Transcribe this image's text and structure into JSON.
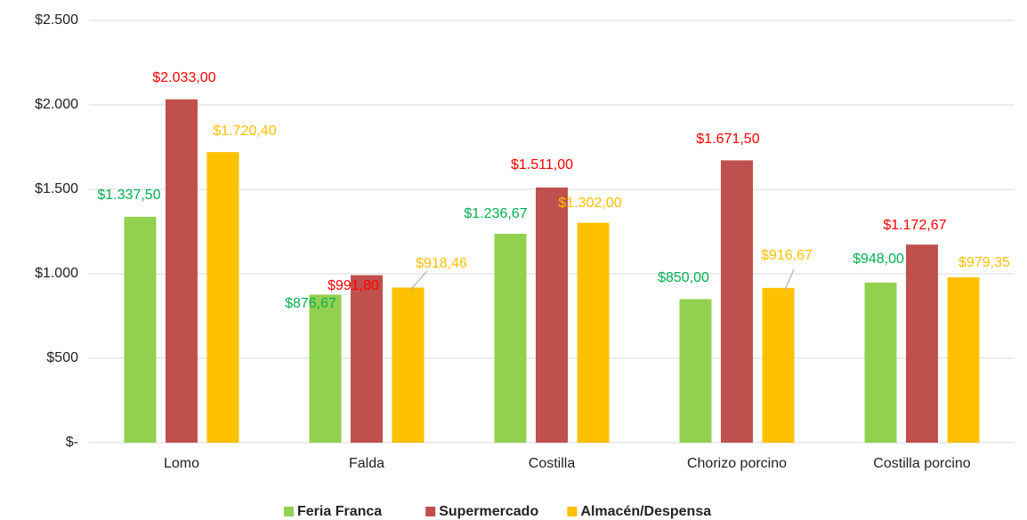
{
  "chart_data": {
    "type": "bar",
    "categories": [
      "Lomo",
      "Falda",
      "Costilla",
      "Chorizo porcino",
      "Costilla porcino"
    ],
    "series": [
      {
        "name": "Feria Franca",
        "color": "#92d050",
        "label_color": "#00b050",
        "values": [
          1337.5,
          876.67,
          1236.67,
          850,
          948
        ],
        "value_labels": [
          "$1.337,50",
          "$876,67",
          "$1.236,67",
          "$850,00",
          "$948,00"
        ]
      },
      {
        "name": "Supermercado",
        "color": "#c0504d",
        "label_color": "#ff0000",
        "values": [
          2033,
          991.8,
          1511,
          1671.5,
          1172.67
        ],
        "value_labels": [
          "$2.033,00",
          "$991,80",
          "$1.511,00",
          "$1.671,50",
          "$1.172,67"
        ]
      },
      {
        "name": "Almacén/Despensa",
        "color": "#ffc000",
        "label_color": "#ffc000",
        "values": [
          1720.4,
          918.46,
          1302,
          916.67,
          979.35
        ],
        "value_labels": [
          "$1.720,40",
          "$918,46",
          "$1.302,00",
          "$916,67",
          "$979,35"
        ]
      }
    ],
    "ylim": [
      0,
      2500
    ],
    "yticks": [
      {
        "value": 0,
        "label": "$-"
      },
      {
        "value": 500,
        "label": "$500"
      },
      {
        "value": 1000,
        "label": "$1.000"
      },
      {
        "value": 1500,
        "label": "$1.500"
      },
      {
        "value": 2000,
        "label": "$2.000"
      },
      {
        "value": 2500,
        "label": "$2.500"
      }
    ],
    "grid": true,
    "legend": "bottom"
  }
}
